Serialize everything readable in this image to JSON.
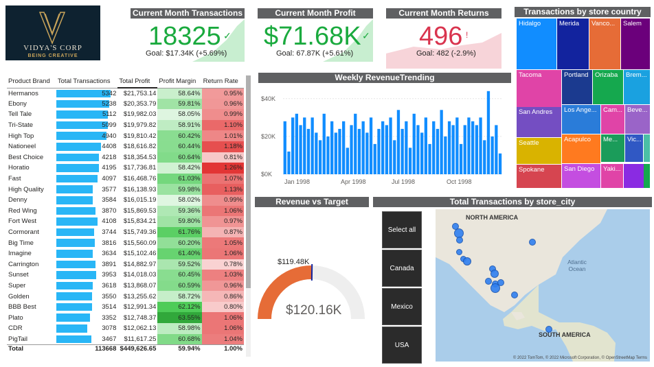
{
  "logo": {
    "line1": "VIDYA'S CORP",
    "line2": "BEING CREATIVE"
  },
  "kpis": {
    "transactions": {
      "title": "Current Month Transactions",
      "value": "18325",
      "goal": "Goal: $17.34K (+5.69%)",
      "color": "#1aaa3e"
    },
    "profit": {
      "title": "Current Month Profit",
      "value": "$71.68K",
      "goal": "Goal: 67.87K (+5.61%)",
      "color": "#1aaa3e"
    },
    "returns": {
      "title": "Current Month Returns",
      "value": "496",
      "goal": "Goal: 482 (-2.9%)",
      "color": "#d9344e"
    }
  },
  "table": {
    "headers": [
      "Product Brand",
      "Total Transactions",
      "Total Profit",
      "Profit Margin",
      "Return Rate"
    ],
    "rows": [
      [
        "Hermanos",
        "5342",
        "$21,753.14",
        "58.64%",
        "0.95%"
      ],
      [
        "Ebony",
        "5238",
        "$20,353.79",
        "59.81%",
        "0.96%"
      ],
      [
        "Tell Tale",
        "5112",
        "$19,982.03",
        "58.05%",
        "0.99%"
      ],
      [
        "Tri-State",
        "5099",
        "$19,979.82",
        "58.91%",
        "1.10%"
      ],
      [
        "High Top",
        "4940",
        "$19,810.42",
        "60.42%",
        "1.01%"
      ],
      [
        "Nationeel",
        "4408",
        "$18,616.82",
        "60.44%",
        "1.18%"
      ],
      [
        "Best Choice",
        "4218",
        "$18,354.53",
        "60.64%",
        "0.81%"
      ],
      [
        "Horatio",
        "4195",
        "$17,736.81",
        "58.42%",
        "1.26%"
      ],
      [
        "Fast",
        "4097",
        "$16,468.76",
        "61.03%",
        "1.07%"
      ],
      [
        "High Quality",
        "3577",
        "$16,138.93",
        "59.98%",
        "1.13%"
      ],
      [
        "Denny",
        "3584",
        "$16,015.19",
        "58.02%",
        "0.99%"
      ],
      [
        "Red Wing",
        "3870",
        "$15,869.53",
        "59.36%",
        "1.06%"
      ],
      [
        "Fort West",
        "4108",
        "$15,834.21",
        "59.80%",
        "0.97%"
      ],
      [
        "Cormorant",
        "3744",
        "$15,749.36",
        "61.76%",
        "0.87%"
      ],
      [
        "Big Time",
        "3816",
        "$15,560.09",
        "60.20%",
        "1.05%"
      ],
      [
        "Imagine",
        "3634",
        "$15,102.46",
        "61.40%",
        "1.06%"
      ],
      [
        "Carrington",
        "3891",
        "$14,882.97",
        "59.52%",
        "0.78%"
      ],
      [
        "Sunset",
        "3953",
        "$14,018.03",
        "60.45%",
        "1.03%"
      ],
      [
        "Super",
        "3618",
        "$13,868.07",
        "60.59%",
        "0.96%"
      ],
      [
        "Golden",
        "3550",
        "$13,255.62",
        "58.72%",
        "0.86%"
      ],
      [
        "BBB Best",
        "3514",
        "$12,991.34",
        "62.12%",
        "0.80%"
      ],
      [
        "Plato",
        "3352",
        "$12,748.37",
        "63.55%",
        "1.06%"
      ],
      [
        "CDR",
        "3078",
        "$12,062.13",
        "58.98%",
        "1.06%"
      ],
      [
        "PigTail",
        "3467",
        "$11,617.25",
        "60.68%",
        "1.04%"
      ]
    ],
    "total": [
      "Total",
      "113668",
      "$449,626.65",
      "59.94%",
      "1.00%"
    ]
  },
  "weekly": {
    "title": "Weekly RevenueTrending",
    "yticks": [
      "$0K",
      "$20K",
      "$40K"
    ],
    "xticks": [
      "Jan 1998",
      "Apr 1998",
      "Jul 1998",
      "Oct 1998"
    ]
  },
  "treemap": {
    "title": "Transactions by store country",
    "tiles": [
      "Hidalgo",
      "Merida",
      "Vanco...",
      "Salem",
      "Tacoma",
      "Portland",
      "Orizaba",
      "Brem...",
      "San Andres",
      "Los Ange...",
      "Cam...",
      "Beve...",
      "Seattle",
      "Acapulco",
      "Me...",
      "Vic...",
      "Spokane",
      "San Diego",
      "Yaki..."
    ]
  },
  "gauge": {
    "title": "Revenue vs Target",
    "target_label": "$119.48K",
    "value_label": "$120.16K",
    "fraction": 0.5
  },
  "cities": {
    "title": "Total Transactions by store_city",
    "buttons": [
      "Select all",
      "Canada",
      "Mexico",
      "USA"
    ]
  },
  "map": {
    "labels": [
      "NORTH AMERICA",
      "Atlantic Ocean",
      "SOUTH AMERICA"
    ],
    "copyright": "© 2022 TomTom, © 2022 Microsoft Corporation, © OpenStreetMap  Terms"
  },
  "chart_data": [
    {
      "type": "bar",
      "title": "Weekly RevenueTrending",
      "xlabel": "",
      "ylabel": "",
      "ylim": [
        0,
        45
      ],
      "unit": "$K",
      "values": [
        28,
        12,
        30,
        32,
        26,
        30,
        24,
        30,
        22,
        18,
        32,
        20,
        28,
        22,
        24,
        28,
        14,
        26,
        32,
        24,
        28,
        22,
        30,
        16,
        24,
        28,
        26,
        30,
        18,
        34,
        24,
        28,
        14,
        32,
        26,
        22,
        30,
        16,
        28,
        24,
        34,
        20,
        28,
        26,
        30,
        16,
        26,
        30,
        28,
        26,
        30,
        18,
        44,
        20,
        26,
        11
      ]
    },
    {
      "type": "bar",
      "title": "Total Transactions (Product Brand)",
      "categories": [
        "Hermanos",
        "Ebony",
        "Tell Tale",
        "Tri-State",
        "High Top",
        "Nationeel",
        "Best Choice",
        "Horatio",
        "Fast",
        "High Quality",
        "Denny",
        "Red Wing",
        "Fort West",
        "Cormorant",
        "Big Time",
        "Imagine",
        "Carrington",
        "Sunset",
        "Super",
        "Golden",
        "BBB Best",
        "Plato",
        "CDR",
        "PigTail"
      ],
      "values": [
        5342,
        5238,
        5112,
        5099,
        4940,
        4408,
        4218,
        4195,
        4097,
        3577,
        3584,
        3870,
        4108,
        3744,
        3816,
        3634,
        3891,
        3953,
        3618,
        3550,
        3514,
        3352,
        3078,
        3467
      ]
    }
  ]
}
